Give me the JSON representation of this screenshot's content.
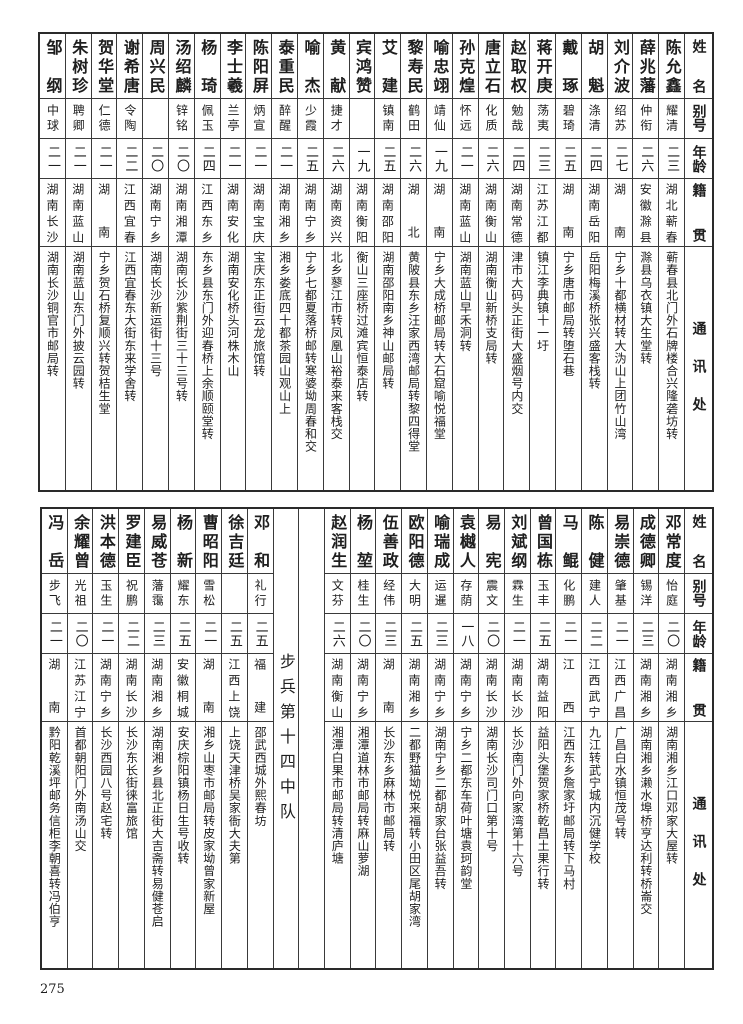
{
  "headers": {
    "name": "姓名",
    "alias": "别号",
    "age": "年龄",
    "origin": "籍贯",
    "address": "通讯处"
  },
  "top_table": [
    {
      "name": "陈允鑫",
      "alias": "耀清",
      "age": "二三",
      "origin": "湖北蕲春",
      "address": "蕲春县北门外石牌楼合兴隆砻坊转"
    },
    {
      "name": "薛兆藩",
      "alias": "仲衔",
      "age": "二六",
      "origin": "安徽滁县",
      "address": "滁县乌衣镇大生堂转"
    },
    {
      "name": "刘介波",
      "alias": "绍苏",
      "age": "二七",
      "origin": "湖南",
      "address": "宁乡十都横材转大沩山上团竹山湾"
    },
    {
      "name": "胡魁",
      "alias": "涤清",
      "age": "二四",
      "origin": "湖南岳阳",
      "address": "岳阳梅溪桥张兴盛客栈转"
    },
    {
      "name": "戴琢",
      "alias": "碧琦",
      "age": "二五",
      "origin": "湖南",
      "address": "宁乡唐市邮局转堕石巷"
    },
    {
      "name": "蒋开庚",
      "alias": "荡夷",
      "age": "二三",
      "origin": "江苏江都",
      "address": "镇江李典镇十一圩"
    },
    {
      "name": "赵取权",
      "alias": "勉哉",
      "age": "二四",
      "origin": "湖南常德",
      "address": "津市大码头正街大盛烟号内交"
    },
    {
      "name": "唐立石",
      "alias": "化质",
      "age": "二六",
      "origin": "湖南衡山",
      "address": "湖南衡山新桥支局转"
    },
    {
      "name": "孙克煌",
      "alias": "怀远",
      "age": "二一",
      "origin": "湖南蓝山",
      "address": "湖南蓝山早禾洞转"
    },
    {
      "name": "喻忠翊",
      "alias": "靖仙",
      "age": "一九",
      "origin": "湖南",
      "address": "宁乡大成桥邮局转大石窟喻悦福堂"
    },
    {
      "name": "黎寿民",
      "alias": "鹤田",
      "age": "二六",
      "origin": "湖北",
      "address": "黄陂县东乡汪家西湾邮局转黎四得堂"
    },
    {
      "name": "艾建",
      "alias": "镇南",
      "age": "二五",
      "origin": "湖南邵阳",
      "address": "湖南邵阳南乡神山邮局转"
    },
    {
      "name": "宾鸿赞",
      "alias": "",
      "age": "一九",
      "origin": "湖南衡阳",
      "address": "衡山三座桥过滩宾恒泰店转"
    },
    {
      "name": "黄献",
      "alias": "捷才",
      "age": "二六",
      "origin": "湖南资兴",
      "address": "北乡蓼江市转凤凰山裕泰来客栈交"
    },
    {
      "name": "喻杰",
      "alias": "少霞",
      "age": "二五",
      "origin": "湖南宁乡",
      "address": "宁乡七都夏落桥邮转寒婆坳周春和交"
    },
    {
      "name": "泰重民",
      "alias": "醉醒",
      "age": "二一",
      "origin": "湖南湘乡",
      "address": "湘乡娄底四十都茶园山观山上"
    },
    {
      "name": "陈阳屏",
      "alias": "炳宣",
      "age": "二一",
      "origin": "湖南宝庆",
      "address": "宝庆东正街云龙旅馆转"
    },
    {
      "name": "李士羲",
      "alias": "兰亭",
      "age": "二一",
      "origin": "湖南安化",
      "address": "湖南安化桥头河株木山"
    },
    {
      "name": "杨琦",
      "alias": "佩玉",
      "age": "二四",
      "origin": "江西东乡",
      "address": "东乡县东门外迎春桥上余顺颐堂转"
    },
    {
      "name": "汤绍麟",
      "alias": "锌铭",
      "age": "二〇",
      "origin": "湖南湘潭",
      "address": "湖南长沙紫荆街三十三号转"
    },
    {
      "name": "周兴民",
      "alias": "",
      "age": "二〇",
      "origin": "湖南宁乡",
      "address": "湖南长沙新运街十三号"
    },
    {
      "name": "谢希唐",
      "alias": "令陶",
      "age": "二二",
      "origin": "江西宜春",
      "address": "江西宜春东大街东来学舍转"
    },
    {
      "name": "贺华堂",
      "alias": "仁德",
      "age": "二一",
      "origin": "湖南",
      "address": "宁乡贺石桥复顺兴转贺桔生堂"
    },
    {
      "name": "朱树珍",
      "alias": "聘卿",
      "age": "二一",
      "origin": "湖南蓝山",
      "address": "湖南蓝山东门外披云园转"
    },
    {
      "name": "邹纲",
      "alias": "中球",
      "age": "二一",
      "origin": "湖南长沙",
      "address": "湖南长沙铜官市邮局转"
    }
  ],
  "bottom_table": [
    {
      "name": "邓常度",
      "alias": "怡庭",
      "age": "二〇",
      "origin": "湖南湘乡",
      "address": "湖南湘乡江口邓家大屋转"
    },
    {
      "name": "成德卿",
      "alias": "锡洋",
      "age": "二三",
      "origin": "湖南湘乡",
      "address": "湖南湘乡濑水埠桥亨达利转桥崙交"
    },
    {
      "name": "易崇德",
      "alias": "肇基",
      "age": "二一",
      "origin": "江西广昌",
      "address": "广昌白水镇恒茂号转"
    },
    {
      "name": "陈健",
      "alias": "建人",
      "age": "二二",
      "origin": "江西武宁",
      "address": "九江转武宁城内沉健学校"
    },
    {
      "name": "马鲲",
      "alias": "化鹏",
      "age": "二一",
      "origin": "江西",
      "address": "江西东乡詹家圩邮局转下马村"
    },
    {
      "name": "曾国栋",
      "alias": "玉丰",
      "age": "二五",
      "origin": "湖南益阳",
      "address": "益阳头堡贺家桥乾昌土果行转"
    },
    {
      "name": "刘斌纲",
      "alias": "霖生",
      "age": "二一",
      "origin": "湖南长沙",
      "address": "长沙南门外向家湾第十六号"
    },
    {
      "name": "易宪",
      "alias": "震文",
      "age": "二〇",
      "origin": "湖南长沙",
      "address": "湖南长沙司门口第十号"
    },
    {
      "name": "袁樾人",
      "alias": "存荫",
      "age": "一八",
      "origin": "湖南宁乡",
      "address": "宁乡二都东车荷叶塘袁珂韵堂"
    },
    {
      "name": "喻瑞成",
      "alias": "运暹",
      "age": "二三",
      "origin": "湖南宁乡",
      "address": "湖南宁乡二都胡家台张益吾转"
    },
    {
      "name": "欧阳德",
      "alias": "大明",
      "age": "二五",
      "origin": "湖南湘乡",
      "address": "二都野猫坳悦来福转小田区尾胡家湾"
    },
    {
      "name": "伍善政",
      "alias": "经伟",
      "age": "二三",
      "origin": "湖南",
      "address": "长沙东乡麻林市邮局转"
    },
    {
      "name": "杨堃",
      "alias": "桂生",
      "age": "二〇",
      "origin": "湖南宁乡",
      "address": "湘潭道林市邮局转麻山萝湖"
    },
    {
      "name": "赵润生",
      "alias": "文芬",
      "age": "二六",
      "origin": "湖南衡山",
      "address": "湘潭白果市邮局转清庐塘"
    },
    {
      "name": "邓和",
      "alias": "礼行",
      "age": "二五",
      "origin": "福建",
      "address": "邵武西城外熙春坊"
    },
    {
      "name": "徐吉廷",
      "alias": "",
      "age": "二五",
      "origin": "江西上饶",
      "address": "上饶天津桥吴家衙大夫第"
    },
    {
      "name": "曹昭阳",
      "alias": "雪松",
      "age": "二一",
      "origin": "湖南",
      "address": "湘乡山枣市邮局转皮家坳曾家新屋"
    },
    {
      "name": "杨新",
      "alias": "耀东",
      "age": "二五",
      "origin": "安徽桐城",
      "address": "安庆棕阳镇杨日生号收转"
    },
    {
      "name": "易威苍",
      "alias": "藩霭",
      "age": "二三",
      "origin": "湖南湘乡",
      "address": "湖南湘乡县北正街大吉斋转易健苍启"
    },
    {
      "name": "罗建臣",
      "alias": "祝鹏",
      "age": "二二",
      "origin": "湖南长沙",
      "address": "长沙东长街徕富旅馆"
    },
    {
      "name": "洪本德",
      "alias": "玉生",
      "age": "二一",
      "origin": "湖南宁乡",
      "address": "长沙西园八号赵宅转"
    },
    {
      "name": "余耀曾",
      "alias": "光祖",
      "age": "二〇",
      "origin": "江苏江宁",
      "address": "首都朝阳门外南汤山交"
    },
    {
      "name": "冯岳",
      "alias": "步飞",
      "age": "二一",
      "origin": "湖南",
      "address": "黔阳乾溪坪邮务信柜李朝喜转冯伯亨"
    }
  ],
  "unit_label": "步兵第十四中队",
  "page_number": "275"
}
